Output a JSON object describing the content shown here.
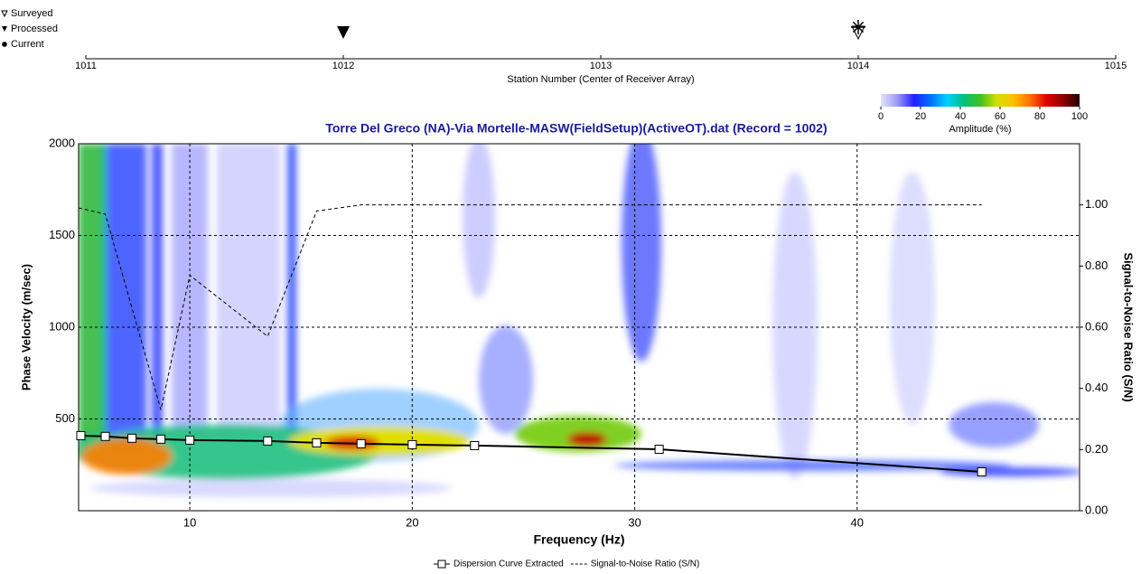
{
  "chart_data": [
    {
      "type": "stations",
      "xlabel": "Station Number (Center of Receiver Array)",
      "xlim": [
        1011,
        1015
      ],
      "xticks": [
        1011,
        1012,
        1013,
        1014,
        1015
      ],
      "legend": [
        "Surveyed",
        "Processed",
        "Current"
      ],
      "surveyed": [
        1014
      ],
      "processed": [
        1012
      ],
      "current": [
        1014
      ]
    },
    {
      "type": "colorbar",
      "label": "Amplitude (%)",
      "lim": [
        0,
        100
      ],
      "ticks": [
        0,
        20,
        40,
        60,
        80,
        100
      ],
      "colormap": [
        "#e4e4fa",
        "#9a9af5",
        "#2020ff",
        "#0070ff",
        "#00d0ff",
        "#00c080",
        "#40c020",
        "#d0e000",
        "#ffc000",
        "#ff7000",
        "#e00000",
        "#900000",
        "#200000"
      ]
    },
    {
      "type": "line",
      "title": "Torre Del Greco (NA)-Via Mortelle-MASW(FieldSetup)(ActiveOT).dat (Record = 1002)",
      "xlabel": "Frequency (Hz)",
      "ylabel": "Phase Velocity (m/sec)",
      "y2label": "Signal-to-Noise Ratio (S/N)",
      "xlim": [
        5,
        50
      ],
      "xticks": [
        10,
        20,
        30,
        40
      ],
      "ylim": [
        0,
        2000
      ],
      "yticks": [
        500,
        1000,
        1500,
        2000
      ],
      "y2lim": [
        0,
        1.2
      ],
      "y2ticks": [
        {
          "value": 0,
          "label": "0.00"
        },
        {
          "value": 0.2,
          "label": "0.20"
        },
        {
          "value": 0.4,
          "label": "0.40"
        },
        {
          "value": 0.6,
          "label": "0.60"
        },
        {
          "value": 0.8,
          "label": "0.80"
        },
        {
          "value": 1,
          "label": "1.00"
        }
      ],
      "grid": true,
      "series": [
        {
          "name": "Dispersion Curve Extracted",
          "color": "#000000",
          "marker": "square",
          "dash": false,
          "x": [
            5.1,
            6.2,
            7.4,
            8.7,
            10,
            13.5,
            15.7,
            17.7,
            20,
            22.8,
            31.1,
            45.6
          ],
          "values": [
            409,
            405,
            395,
            390,
            385,
            380,
            370,
            365,
            360,
            355,
            335,
            212
          ]
        },
        {
          "name": "Signal-to-Noise Ratio (S/N)",
          "color": "#000000",
          "marker": "none",
          "dash": true,
          "axis": "y2",
          "x": [
            5,
            6.2,
            8.7,
            10,
            13.5,
            15.7,
            17.7,
            45.6
          ],
          "values": [
            0.99,
            0.97,
            0.33,
            0.77,
            0.57,
            0.98,
            1.0,
            1.0
          ]
        }
      ]
    }
  ]
}
